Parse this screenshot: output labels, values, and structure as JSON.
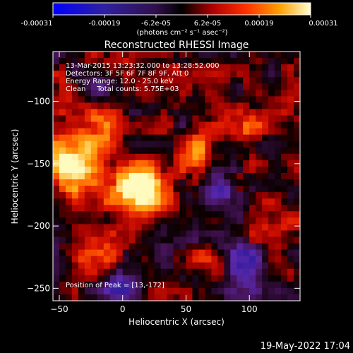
{
  "colorbar": {
    "ticks": [
      "-0.00031",
      "-0.00019",
      "-6.2e-05",
      "6.2e-05",
      "0.00019",
      "0.00031"
    ],
    "unit_label": "(photons cm⁻² s⁻¹ asec⁻²)",
    "min": -0.00031,
    "max": 0.00031
  },
  "title": "Reconstructed RHESSI Image",
  "info": {
    "line1": "13-Mar-2015 13:23:32.000 to 13:28:52.000",
    "line2": "Detectors: 3F 5F 6F 7F 8F 9F, Att 0",
    "line3": "Energy Range: 12.0 - 25.0 keV",
    "line4": "Clean     Total counts: 5.75E+03",
    "peak": "Position of Peak = [13,-172]"
  },
  "axes": {
    "xlabel": "Heliocentric X (arcsec)",
    "ylabel": "Heliocentric Y (arcsec)",
    "xticks": [
      -50,
      0,
      50,
      100
    ],
    "yticks": [
      -100,
      -150,
      -200,
      -250
    ],
    "xlim": [
      -55,
      140
    ],
    "ylim": [
      -260,
      -60
    ]
  },
  "peak_position": [
    13,
    -172
  ],
  "footer_date": "19-May-2022 17:04"
}
